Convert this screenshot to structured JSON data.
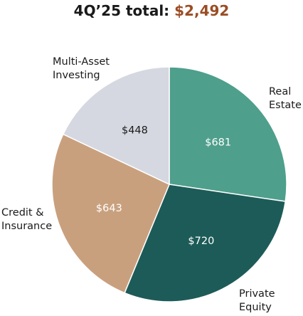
{
  "chart_data": {
    "type": "pie",
    "title_prefix": "4Q’25 total: ",
    "title_value": "$2,492",
    "slices": [
      {
        "label_lines": [
          "Real",
          "Estate"
        ],
        "value": 681,
        "value_label": "$681",
        "color": "#4e9f8c",
        "value_color": "#ffffff"
      },
      {
        "label_lines": [
          "Private",
          "Equity"
        ],
        "value": 720,
        "value_label": "$720",
        "color": "#1d5b58",
        "value_color": "#ffffff"
      },
      {
        "label_lines": [
          "Credit &",
          "Insurance"
        ],
        "value": 643,
        "value_label": "$643",
        "color": "#c9a07e",
        "value_color": "#ffffff"
      },
      {
        "label_lines": [
          "Multi-Asset",
          "Investing"
        ],
        "value": 448,
        "value_label": "$448",
        "color": "#d5d8e0",
        "value_color": "#1a1a1a"
      }
    ],
    "title_color": "#1a1a1a",
    "total_color": "#9b4d24"
  }
}
